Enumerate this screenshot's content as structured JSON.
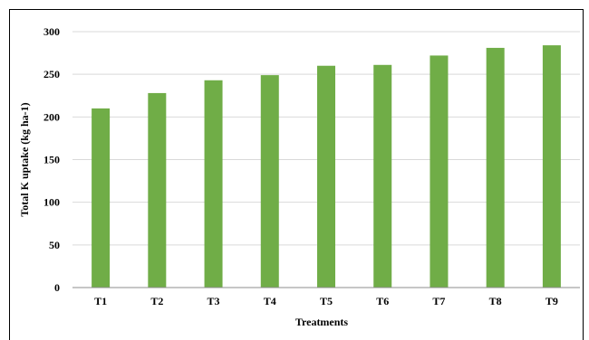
{
  "chart_data": {
    "type": "bar",
    "title": "",
    "xlabel": "Treatments",
    "ylabel": "Total K uptake (kg ha-1)",
    "categories": [
      "T1",
      "T2",
      "T3",
      "T4",
      "T5",
      "T6",
      "T7",
      "T8",
      "T9"
    ],
    "values": [
      210,
      228,
      243,
      249,
      260,
      261,
      272,
      281,
      284
    ],
    "ylim": [
      0,
      300
    ],
    "yticks": [
      0,
      50,
      100,
      150,
      200,
      250,
      300
    ],
    "ytick_labels": [
      "0",
      "50",
      "100",
      "150",
      "200",
      "250",
      "300"
    ],
    "grid": true,
    "legend": "none",
    "bar_color": "#70ad47",
    "grid_color": "#d9d9d9"
  }
}
